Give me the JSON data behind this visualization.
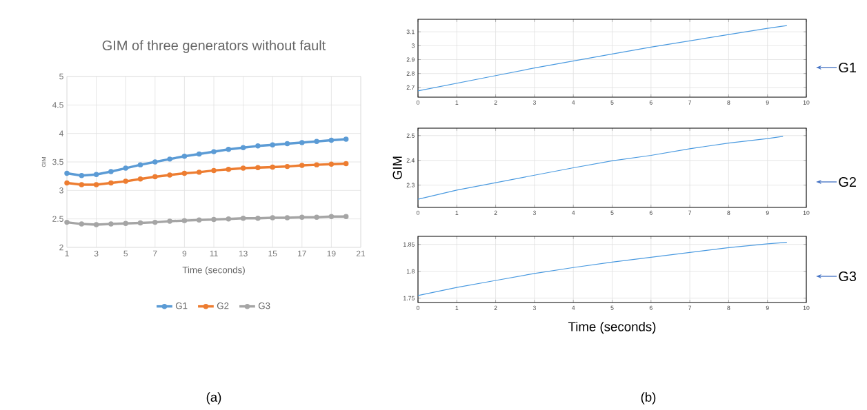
{
  "chart_data": [
    {
      "type": "line",
      "title": "GIM of three generators without fault",
      "xlabel": "Time (seconds)",
      "ylabel": "GIM",
      "x": [
        1,
        2,
        3,
        4,
        5,
        6,
        7,
        8,
        9,
        10,
        11,
        12,
        13,
        14,
        15,
        16,
        17,
        18,
        19,
        20
      ],
      "xlim": [
        1,
        21
      ],
      "xticks": [
        1,
        3,
        5,
        7,
        9,
        11,
        13,
        15,
        17,
        19,
        21
      ],
      "ylim": [
        2,
        5
      ],
      "yticks": [
        2,
        2.5,
        3,
        3.5,
        4,
        4.5,
        5
      ],
      "grid": true,
      "legend": "bottom",
      "marker": "circle",
      "series": [
        {
          "name": "G1",
          "color": "#5b9bd5",
          "values": [
            3.3,
            3.26,
            3.28,
            3.33,
            3.39,
            3.45,
            3.5,
            3.55,
            3.6,
            3.64,
            3.68,
            3.72,
            3.75,
            3.78,
            3.8,
            3.82,
            3.84,
            3.86,
            3.88,
            3.9
          ]
        },
        {
          "name": "G2",
          "color": "#ed7d31",
          "values": [
            3.13,
            3.1,
            3.1,
            3.13,
            3.16,
            3.2,
            3.24,
            3.27,
            3.3,
            3.32,
            3.35,
            3.37,
            3.39,
            3.4,
            3.41,
            3.42,
            3.44,
            3.45,
            3.46,
            3.47
          ]
        },
        {
          "name": "G3",
          "color": "#a5a5a5",
          "values": [
            2.44,
            2.41,
            2.4,
            2.41,
            2.42,
            2.43,
            2.44,
            2.46,
            2.47,
            2.48,
            2.49,
            2.5,
            2.51,
            2.51,
            2.52,
            2.52,
            2.53,
            2.53,
            2.54,
            2.54
          ]
        }
      ],
      "annotations": [
        "(a)"
      ]
    },
    {
      "type": "line",
      "x": [
        0,
        1,
        2,
        3,
        4,
        5,
        6,
        7,
        8,
        9,
        9.5
      ],
      "xlim": [
        0,
        10
      ],
      "xticks": [
        0,
        1,
        2,
        3,
        4,
        5,
        6,
        7,
        8,
        9,
        10
      ],
      "ylim": [
        2.63,
        3.19
      ],
      "yticks": [
        2.7,
        2.8,
        2.9,
        3,
        3.1
      ],
      "grid": true,
      "series": [
        {
          "color": "#4a9ae0",
          "values": [
            2.675,
            2.73,
            2.785,
            2.84,
            2.89,
            2.94,
            2.99,
            3.035,
            3.08,
            3.125,
            3.145
          ]
        }
      ],
      "annotations": [
        "G1"
      ]
    },
    {
      "type": "line",
      "ylabel": "GIM",
      "x": [
        0,
        1,
        2,
        3,
        4,
        5,
        6,
        7,
        8,
        9,
        9.4
      ],
      "xlim": [
        0,
        10
      ],
      "xticks": [
        0,
        1,
        2,
        3,
        4,
        5,
        6,
        7,
        8,
        9,
        10
      ],
      "ylim": [
        2.21,
        2.53
      ],
      "yticks": [
        2.3,
        2.4,
        2.5
      ],
      "grid": true,
      "series": [
        {
          "color": "#4a9ae0",
          "values": [
            2.243,
            2.28,
            2.31,
            2.34,
            2.37,
            2.398,
            2.42,
            2.447,
            2.47,
            2.488,
            2.497
          ]
        }
      ],
      "annotations": [
        "G2"
      ]
    },
    {
      "type": "line",
      "xlabel": "Time (seconds)",
      "x": [
        0,
        1,
        2,
        3,
        4,
        5,
        6,
        7,
        8,
        9,
        9.5
      ],
      "xlim": [
        0,
        10
      ],
      "xticks": [
        0,
        1,
        2,
        3,
        4,
        5,
        6,
        7,
        8,
        9,
        10
      ],
      "ylim": [
        1.742,
        1.865
      ],
      "yticks": [
        1.75,
        1.8,
        1.85
      ],
      "grid": true,
      "series": [
        {
          "color": "#4a9ae0",
          "values": [
            1.755,
            1.77,
            1.783,
            1.796,
            1.807,
            1.817,
            1.826,
            1.835,
            1.844,
            1.851,
            1.854
          ]
        }
      ],
      "annotations": [
        "G3",
        "(b)"
      ]
    }
  ]
}
